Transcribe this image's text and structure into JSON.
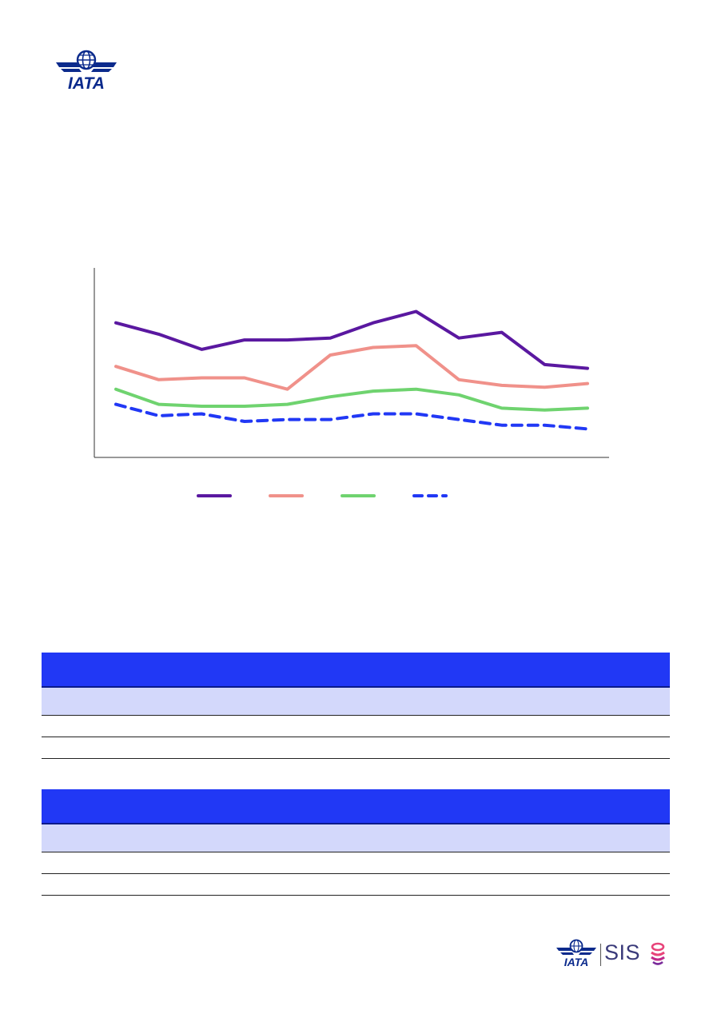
{
  "logos": {
    "top": {
      "text": "IATA",
      "icon": "iata-globe-logo-icon",
      "color": "#0b2a8c"
    },
    "bottom": {
      "iata_text": "IATA",
      "sis_text": "SIS",
      "icon": "sis-swirl-icon",
      "accent": "#e8447a"
    }
  },
  "chart_data": {
    "type": "line",
    "title": "",
    "xlabel": "",
    "ylabel": "",
    "x": [
      1,
      2,
      3,
      4,
      5,
      6,
      7,
      8,
      9,
      10,
      11,
      12
    ],
    "ylim": [
      0,
      100
    ],
    "grid": false,
    "legend_placement": "bottom-center",
    "series": [
      {
        "color": "#5a18a0",
        "style": "solid",
        "values": [
          71,
          65,
          57,
          62,
          62,
          63,
          71,
          77,
          63,
          66,
          49,
          47
        ]
      },
      {
        "color": "#f0918a",
        "style": "solid",
        "values": [
          48,
          41,
          42,
          42,
          36,
          54,
          58,
          59,
          41,
          38,
          37,
          39
        ]
      },
      {
        "color": "#6fd36f",
        "style": "solid",
        "values": [
          36,
          28,
          27,
          27,
          28,
          32,
          35,
          36,
          33,
          26,
          25,
          26
        ]
      },
      {
        "color": "#2138f5",
        "style": "dashed",
        "values": [
          28,
          22,
          23,
          19,
          20,
          20,
          23,
          23,
          20,
          17,
          17,
          15
        ]
      }
    ]
  },
  "tables": {
    "header_color": "#2138f5",
    "subheader_color": "#d3d8fb"
  }
}
